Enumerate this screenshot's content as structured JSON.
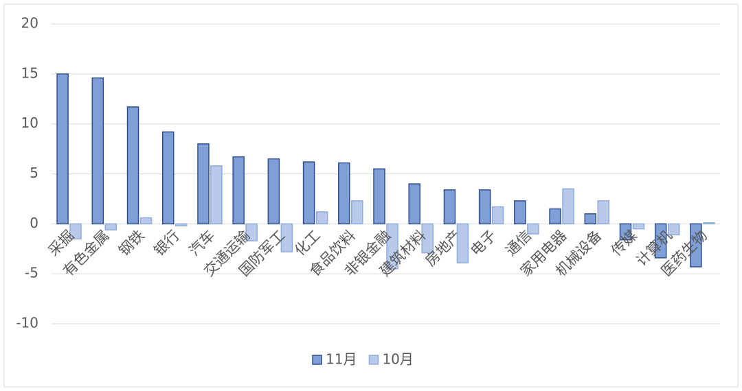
{
  "chart_data": {
    "type": "bar",
    "categories": [
      "采掘",
      "有色金属",
      "钢铁",
      "银行",
      "汽车",
      "交通运输",
      "国防军工",
      "化工",
      "食品饮料",
      "非银金融",
      "建筑材料",
      "房地产",
      "电子",
      "通信",
      "家用电器",
      "机械设备",
      "传媒",
      "计算机",
      "医药生物"
    ],
    "series": [
      {
        "name": "11月",
        "color": "#7f9fd6",
        "values": [
          15.0,
          14.6,
          11.7,
          9.2,
          8.0,
          6.7,
          6.5,
          6.2,
          6.1,
          5.5,
          4.0,
          3.4,
          3.4,
          2.3,
          1.5,
          1.0,
          -1.6,
          -3.4,
          -4.3
        ]
      },
      {
        "name": "10月",
        "color": "#b8c9ea",
        "values": [
          -1.5,
          -0.6,
          0.6,
          -0.2,
          5.8,
          -1.7,
          -2.8,
          1.2,
          2.3,
          -4.5,
          -2.9,
          -3.9,
          1.7,
          -1.0,
          3.5,
          2.3,
          -0.5,
          -1.1,
          0.1
        ]
      }
    ],
    "ylim": [
      -10,
      20
    ],
    "yticks": [
      -10,
      -5,
      0,
      5,
      10,
      15,
      20
    ],
    "grid": true,
    "legend": "bottom"
  }
}
